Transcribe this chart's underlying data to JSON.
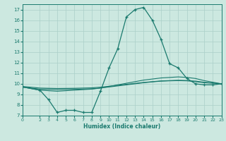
{
  "xlabel": "Humidex (Indice chaleur)",
  "bg_color": "#cce8e0",
  "grid_color": "#aacfc8",
  "line_color": "#1a7a6e",
  "xlim": [
    0,
    23
  ],
  "ylim": [
    7,
    17.5
  ],
  "xticks": [
    0,
    2,
    3,
    4,
    5,
    6,
    7,
    8,
    9,
    10,
    11,
    12,
    13,
    14,
    15,
    16,
    17,
    18,
    19,
    20,
    21,
    22,
    23
  ],
  "yticks": [
    7,
    8,
    9,
    10,
    11,
    12,
    13,
    14,
    15,
    16,
    17
  ],
  "xtick_labels": [
    "0",
    "2",
    "3",
    "4",
    "5",
    "6",
    "7",
    "8",
    "9",
    "10",
    "11",
    "12",
    "13",
    "14",
    "15",
    "16",
    "17",
    "18",
    "19",
    "20",
    "21",
    "22",
    "23"
  ],
  "series": [
    {
      "x": [
        0,
        2,
        3,
        4,
        5,
        6,
        7,
        8,
        9,
        10,
        11,
        12,
        13,
        14,
        15,
        16,
        17,
        18,
        19,
        20,
        21,
        22,
        23
      ],
      "y": [
        9.7,
        9.4,
        8.5,
        7.3,
        7.5,
        7.5,
        7.3,
        7.3,
        9.3,
        11.5,
        13.3,
        16.3,
        17.0,
        17.2,
        16.0,
        14.2,
        11.9,
        11.5,
        10.5,
        10.0,
        9.9,
        9.9,
        10.0
      ],
      "marker": true
    },
    {
      "x": [
        0,
        2,
        3,
        4,
        5,
        6,
        7,
        8,
        9,
        10,
        11,
        12,
        13,
        14,
        15,
        16,
        17,
        18,
        19,
        20,
        21,
        22,
        23
      ],
      "y": [
        9.7,
        9.4,
        9.35,
        9.3,
        9.35,
        9.4,
        9.45,
        9.5,
        9.6,
        9.75,
        9.9,
        10.05,
        10.2,
        10.35,
        10.45,
        10.55,
        10.6,
        10.65,
        10.6,
        10.5,
        10.3,
        10.15,
        10.0
      ],
      "marker": false
    },
    {
      "x": [
        0,
        2,
        3,
        4,
        5,
        6,
        7,
        8,
        9,
        10,
        11,
        12,
        13,
        14,
        15,
        16,
        17,
        18,
        19,
        20,
        21,
        22,
        23
      ],
      "y": [
        9.7,
        9.5,
        9.48,
        9.45,
        9.47,
        9.49,
        9.51,
        9.53,
        9.6,
        9.7,
        9.8,
        9.9,
        10.0,
        10.1,
        10.18,
        10.25,
        10.28,
        10.3,
        10.28,
        10.2,
        10.1,
        10.05,
        10.0
      ],
      "marker": false
    },
    {
      "x": [
        0,
        2,
        3,
        4,
        5,
        6,
        7,
        8,
        9,
        10,
        11,
        12,
        13,
        14,
        15,
        16,
        17,
        18,
        19,
        20,
        21,
        22,
        23
      ],
      "y": [
        9.75,
        9.6,
        9.58,
        9.56,
        9.57,
        9.58,
        9.6,
        9.62,
        9.68,
        9.77,
        9.86,
        9.95,
        10.04,
        10.13,
        10.2,
        10.27,
        10.3,
        10.33,
        10.31,
        10.25,
        10.15,
        10.08,
        10.0
      ],
      "marker": false
    }
  ]
}
